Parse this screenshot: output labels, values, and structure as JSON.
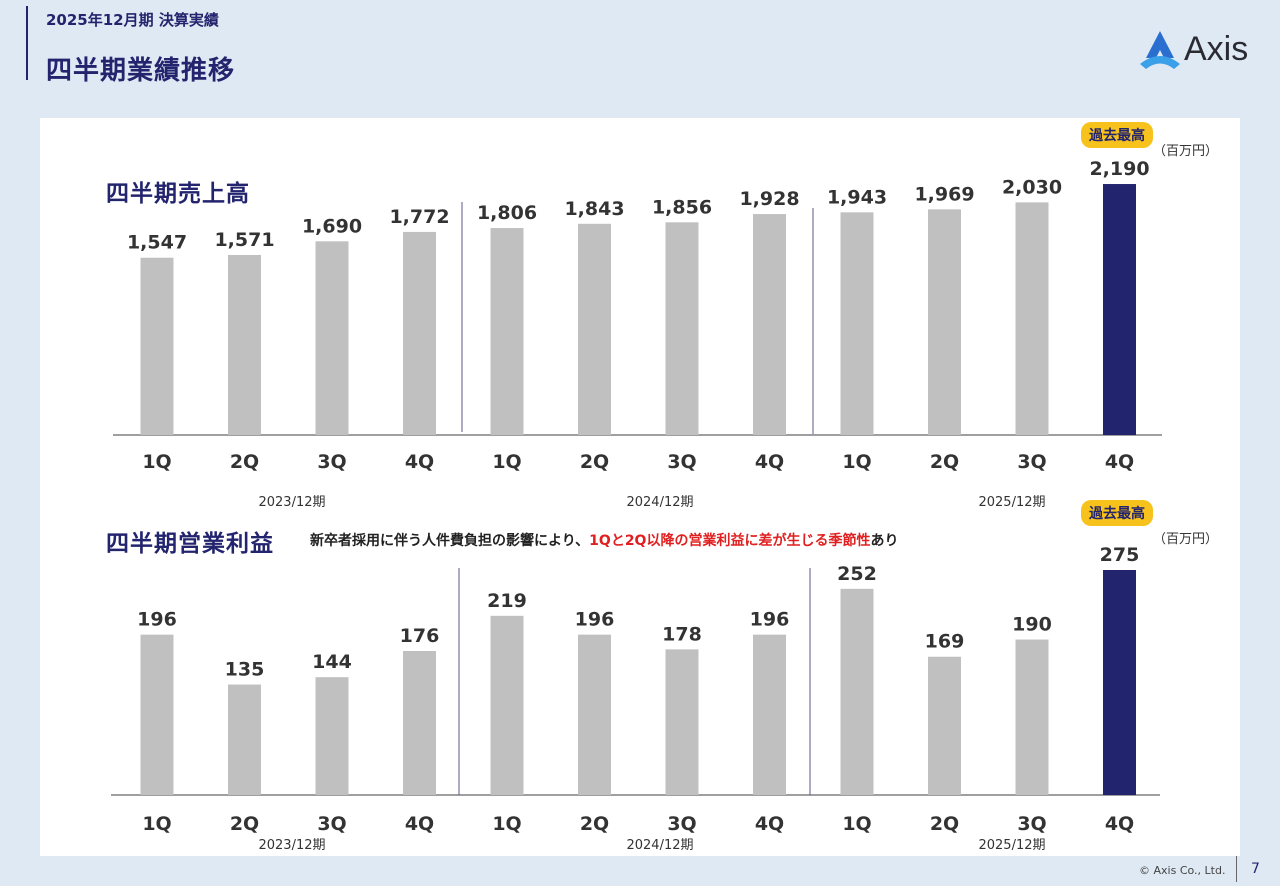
{
  "header": {
    "subtitle": "2025年12月期 決算実績",
    "title": "四半期業績推移"
  },
  "logo": {
    "text": "Axis",
    "icon": "axis-logo-icon",
    "color": "#2a6fd0"
  },
  "colors": {
    "bar": "#c0c0c0",
    "highlight": "#23246e",
    "badge": "#f7c21b",
    "note_red": "#e02020"
  },
  "chart_data": [
    {
      "type": "bar",
      "title": "四半期売上高",
      "unit": "（百万円）",
      "categories": [
        "1Q",
        "2Q",
        "3Q",
        "4Q",
        "1Q",
        "2Q",
        "3Q",
        "4Q",
        "1Q",
        "2Q",
        "3Q",
        "4Q"
      ],
      "values": [
        1547,
        1571,
        1690,
        1772,
        1806,
        1843,
        1856,
        1928,
        1943,
        1969,
        2030,
        2190
      ],
      "value_labels": [
        "1,547",
        "1,571",
        "1,690",
        "1,772",
        "1,806",
        "1,843",
        "1,856",
        "1,928",
        "1,943",
        "1,969",
        "2,030",
        "2,190"
      ],
      "years": [
        "2023/12期",
        "2024/12期",
        "2025/12期"
      ],
      "highlight_index": 11,
      "badge": "過去最高"
    },
    {
      "type": "bar",
      "title": "四半期営業利益",
      "unit": "（百万円）",
      "note": {
        "before": "新卒者採用に伴う人件費負担の影響により、",
        "highlight": "1Qと2Q以降の営業利益に差が生じる季節性",
        "after": "あり"
      },
      "categories": [
        "1Q",
        "2Q",
        "3Q",
        "4Q",
        "1Q",
        "2Q",
        "3Q",
        "4Q",
        "1Q",
        "2Q",
        "3Q",
        "4Q"
      ],
      "values": [
        196,
        135,
        144,
        176,
        219,
        196,
        178,
        196,
        252,
        169,
        190,
        275
      ],
      "value_labels": [
        "196",
        "135",
        "144",
        "176",
        "219",
        "196",
        "178",
        "196",
        "252",
        "169",
        "190",
        "275"
      ],
      "years": [
        "2023/12期",
        "2024/12期",
        "2025/12期"
      ],
      "highlight_index": 11,
      "badge": "過去最高"
    }
  ],
  "footer": {
    "copyright": "© Axis Co., Ltd.",
    "page": "7"
  }
}
